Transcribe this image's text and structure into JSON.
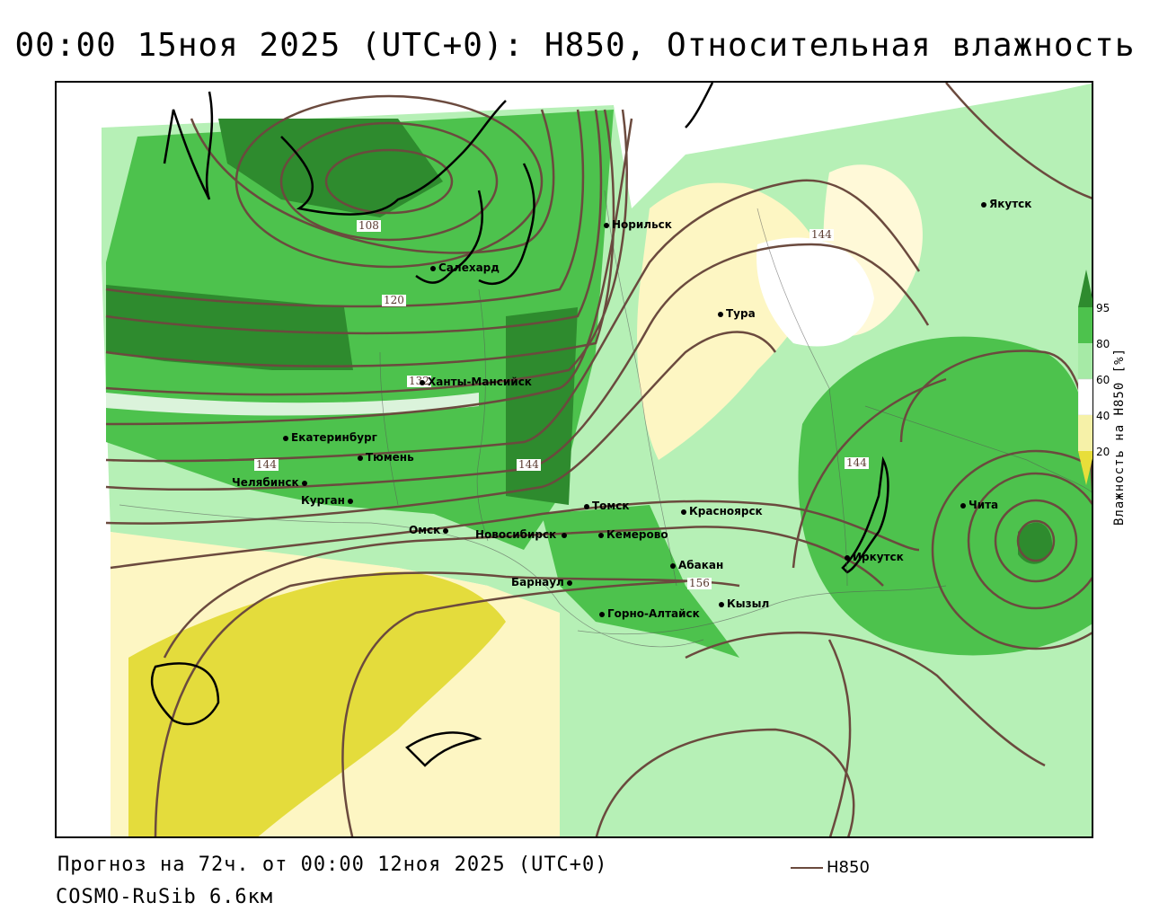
{
  "title": "00:00 15ноя 2025 (UTC+0): H850, Относительная влажность",
  "map": {
    "cities": [
      {
        "name": "Якутск"
      },
      {
        "name": "Норильск"
      },
      {
        "name": "Салехард"
      },
      {
        "name": "Тура"
      },
      {
        "name": "Ханты-Мансийск"
      },
      {
        "name": "Екатеринбург"
      },
      {
        "name": "Тюмень"
      },
      {
        "name": "Челябинск"
      },
      {
        "name": "Курган"
      },
      {
        "name": "Омск"
      },
      {
        "name": "Новосибирск"
      },
      {
        "name": "Томск"
      },
      {
        "name": "Кемерово"
      },
      {
        "name": "Красноярск"
      },
      {
        "name": "Барнаул"
      },
      {
        "name": "Абакан"
      },
      {
        "name": "Горно-Алтайск"
      },
      {
        "name": "Кызыл"
      },
      {
        "name": "Иркутск"
      },
      {
        "name": "Чита"
      }
    ],
    "isoline_labels": [
      "108",
      "120",
      "132",
      "144",
      "144",
      "144",
      "144",
      "156"
    ]
  },
  "legend": {
    "title": "Влажность на H850 [%]",
    "ticks": [
      "95",
      "80",
      "60",
      "40",
      "20"
    ],
    "colors": {
      "c95": "#2e8b2e",
      "c80": "#4dc24d",
      "c60": "#a6eaa6",
      "c40": "#f6f1a8",
      "c20": "#e8de3a"
    }
  },
  "footer": {
    "forecast": "Прогноз на 72ч. от 00:00 12ноя 2025 (UTC+0)",
    "model": "COSMO-RuSib 6.6км",
    "line_legend": "H850"
  },
  "colors": {
    "contour": "#6b4a3e",
    "dark_green": "#2e8b2e",
    "green": "#4dc24d",
    "light_green": "#b6f0b6",
    "pale_yellow": "#fdf6c3",
    "yellow": "#e4dc3c"
  }
}
